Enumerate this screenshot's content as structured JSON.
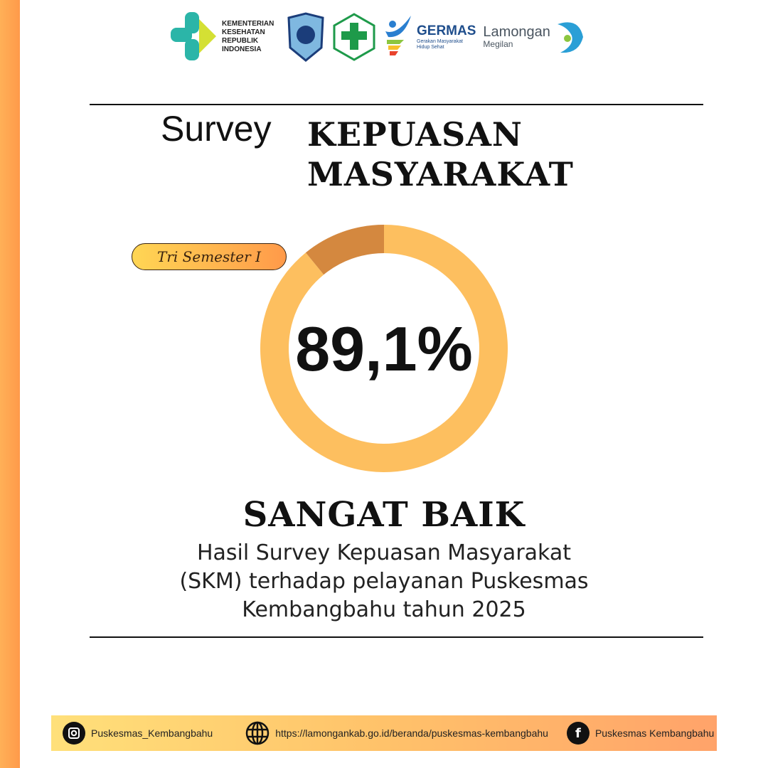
{
  "logos": {
    "kemenkes": "KEMENTERIAN KESEHATAN REPUBLIK INDONESIA",
    "germas_title": "GERMAS",
    "germas_sub": "Gerakan Masyarakat Hidup Sehat",
    "lamongan_title": "Lamongan",
    "lamongan_sub": "Megilan"
  },
  "header": {
    "survey": "Survey",
    "title_line1": "KEPUASAN",
    "title_line2": "MASYARAKAT"
  },
  "badge": "Tri Semester I",
  "chart_data": {
    "type": "pie",
    "variant": "donut",
    "values": [
      89.1,
      10.9
    ],
    "colors": [
      "#fdbf5f",
      "#d4883f"
    ],
    "center_label": "89,1%"
  },
  "rating": "SANGAT BAIK",
  "description": [
    "Hasil Survey Kepuasan Masyarakat",
    "(SKM) terhadap pelayanan Puskesmas",
    "Kembangbahu tahun 2025"
  ],
  "footer": {
    "instagram": "Puskesmas_Kembangbahu",
    "website": "https://lamongankab.go.id/beranda/puskesmas-kembangbahu",
    "facebook": "Puskesmas Kembangbahu"
  }
}
